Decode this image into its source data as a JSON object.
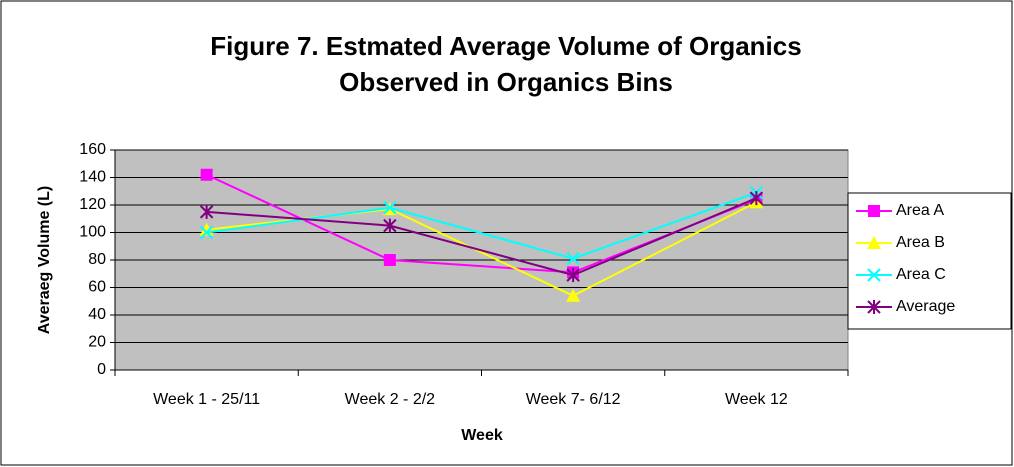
{
  "chart_data": {
    "type": "line",
    "title": [
      "Figure 7. Estmated Average Volume of Organics",
      "Observed in Organics Bins"
    ],
    "x_label": "Week",
    "y_label": "Averaeg Volume (L)",
    "categories": [
      "Week 1 - 25/11",
      "Week 2 - 2/2",
      "Week 7- 6/12",
      "Week 12"
    ],
    "series": [
      {
        "name": "Area A",
        "color": "#ff00ff",
        "marker": "square",
        "values": [
          142,
          80,
          71,
          124
        ]
      },
      {
        "name": "Area B",
        "color": "#ffff00",
        "marker": "triangle",
        "values": [
          102,
          117,
          54,
          122
        ]
      },
      {
        "name": "Area C",
        "color": "#00ffff",
        "marker": "x",
        "values": [
          100,
          118,
          81,
          129
        ]
      },
      {
        "name": "Average",
        "color": "#800080",
        "marker": "asterisk",
        "values": [
          115,
          105,
          69,
          125
        ]
      }
    ],
    "ylim": [
      0,
      160
    ],
    "yticks": [
      0,
      20,
      40,
      60,
      80,
      100,
      120,
      140,
      160
    ],
    "grid": true,
    "legend": "right"
  }
}
